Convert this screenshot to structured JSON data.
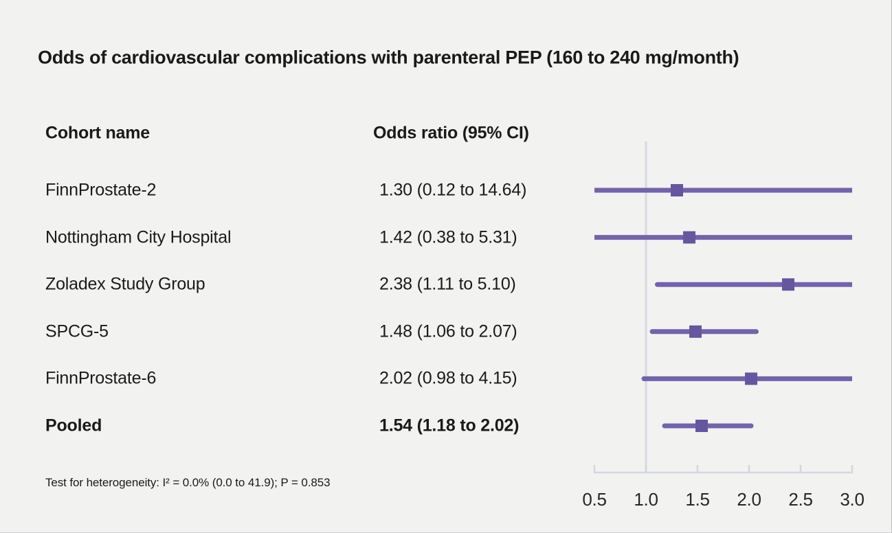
{
  "title": "Odds of cardiovascular complications with parenteral PEP (160 to 240 mg/month)",
  "table": {
    "cohort_header": "Cohort name",
    "or_header": "Odds ratio (95% CI)"
  },
  "footnote": "Test for heterogeneity: I² = 0.0% (0.0 to 41.9); P = 0.853",
  "colors": {
    "background": "#f2f2f1",
    "text": "#1a1a1a",
    "ci_line": "#7263aa",
    "estimate_marker": "#66569f",
    "reference_line": "#d6d9e0",
    "axis": "#d3d6dd",
    "axis_label": "#26262a"
  },
  "chart_data": {
    "type": "forest",
    "title": "Odds of cardiovascular complications with parenteral PEP (160 to 240 mg/month)",
    "x_axis": {
      "range": [
        0.5,
        3.0
      ],
      "tick_values": [
        0.5,
        1.0,
        1.5,
        2.0,
        2.5,
        3.0
      ],
      "tick_labels": [
        "0.5",
        "1.0",
        "1.5",
        "2.0",
        "2.5",
        "3.0"
      ],
      "reference_value": 1.0
    },
    "rows": [
      {
        "name": "FinnProstate-2",
        "or_text": "1.30 (0.12 to 14.64)",
        "estimate": 1.3,
        "ci_low": 0.12,
        "ci_high": 14.64,
        "pooled": false
      },
      {
        "name": "Nottingham City Hospital",
        "or_text": "1.42 (0.38 to 5.31)",
        "estimate": 1.42,
        "ci_low": 0.38,
        "ci_high": 5.31,
        "pooled": false
      },
      {
        "name": "Zoladex Study Group",
        "or_text": "2.38 (1.11 to 5.10)",
        "estimate": 2.38,
        "ci_low": 1.11,
        "ci_high": 5.1,
        "pooled": false
      },
      {
        "name": "SPCG-5",
        "or_text": "1.48 (1.06 to 2.07)",
        "estimate": 1.48,
        "ci_low": 1.06,
        "ci_high": 2.07,
        "pooled": false
      },
      {
        "name": "FinnProstate-6",
        "or_text": "2.02 (0.98 to 4.15)",
        "estimate": 2.02,
        "ci_low": 0.98,
        "ci_high": 4.15,
        "pooled": false
      },
      {
        "name": "Pooled",
        "or_text": "1.54 (1.18 to 2.02)",
        "estimate": 1.54,
        "ci_low": 1.18,
        "ci_high": 2.02,
        "pooled": true
      }
    ]
  }
}
